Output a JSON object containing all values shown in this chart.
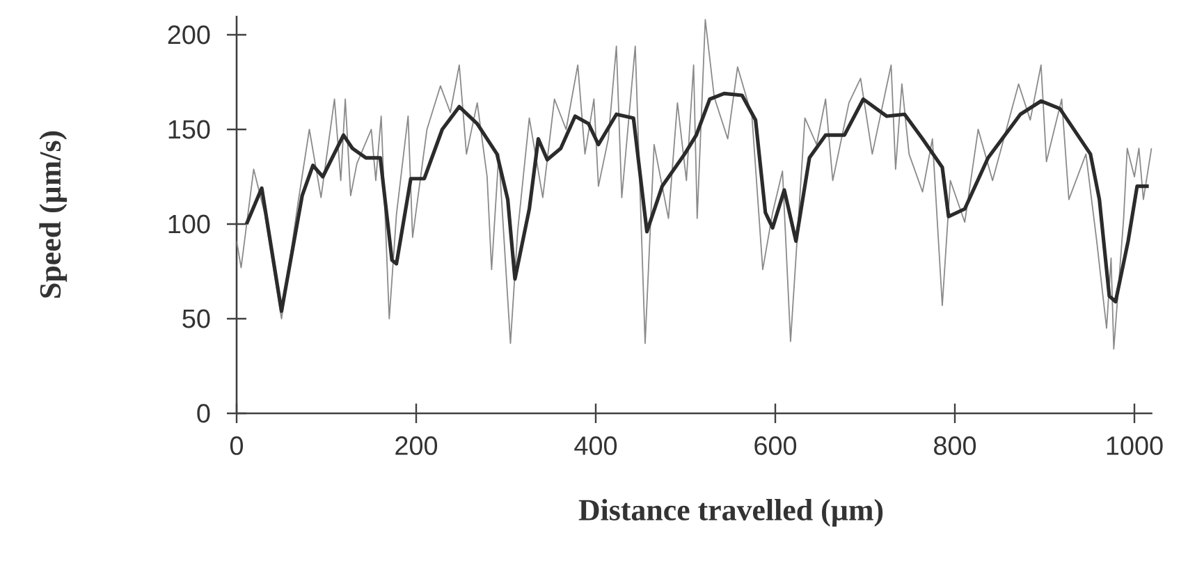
{
  "chart_data": {
    "type": "line",
    "xlabel": "Distance travelled (µm)",
    "ylabel": "Speed (µm/s)",
    "xlim": [
      0,
      1020
    ],
    "ylim": [
      0,
      210
    ],
    "xticks": [
      0,
      200,
      400,
      600,
      800,
      1000
    ],
    "yticks": [
      0,
      50,
      100,
      150,
      200
    ],
    "grid": false,
    "series": [
      {
        "color": "#8a8a8a",
        "x": [
          0,
          5,
          19,
          31,
          50,
          68,
          81,
          94,
          109,
          116,
          121,
          127,
          134,
          150,
          155,
          161,
          170,
          178,
          191,
          196,
          212,
          227,
          238,
          248,
          256,
          268,
          279,
          284,
          292,
          305,
          313,
          326,
          341,
          354,
          367,
          380,
          388,
          398,
          403,
          414,
          423,
          429,
          444,
          455,
          465,
          481,
          491,
          501,
          509,
          513,
          522,
          532,
          547,
          558,
          574,
          586,
          597,
          608,
          617,
          633,
          646,
          656,
          664,
          682,
          695,
          708,
          729,
          734,
          741,
          749,
          764,
          775,
          786,
          795,
          811,
          826,
          842,
          871,
          884,
          896,
          902,
          919,
          927,
          946,
          958,
          969,
          974,
          977,
          988,
          992,
          1000,
          1005,
          1010,
          1019
        ],
        "values": [
          91,
          77,
          129,
          106,
          50,
          110,
          150,
          114,
          166,
          123,
          166,
          115,
          132,
          150,
          123,
          157,
          50,
          105,
          157,
          93,
          150,
          173,
          159,
          184,
          137,
          164,
          125,
          76,
          137,
          37,
          96,
          156,
          114,
          166,
          150,
          184,
          137,
          166,
          120,
          145,
          194,
          114,
          194,
          37,
          142,
          103,
          164,
          123,
          184,
          103,
          208,
          167,
          145,
          183,
          157,
          76,
          106,
          128,
          38,
          156,
          142,
          166,
          123,
          164,
          177,
          137,
          184,
          129,
          174,
          137,
          117,
          145,
          57,
          123,
          101,
          150,
          123,
          174,
          155,
          184,
          133,
          166,
          113,
          137,
          91,
          45,
          82,
          34,
          103,
          140,
          125,
          140,
          113,
          140
        ]
      },
      {
        "color": "#2b2b2b",
        "x": [
          11,
          28,
          50,
          73,
          85,
          96,
          119,
          129,
          144,
          160,
          173,
          178,
          194,
          209,
          229,
          248,
          268,
          290,
          302,
          310,
          326,
          336,
          346,
          361,
          377,
          392,
          403,
          423,
          442,
          457,
          474,
          499,
          512,
          527,
          543,
          563,
          578,
          589,
          597,
          610,
          623,
          638,
          656,
          677,
          698,
          724,
          744,
          764,
          786,
          793,
          811,
          837,
          873,
          896,
          917,
          951,
          961,
          972,
          979,
          993,
          1003,
          1016
        ],
        "values": [
          100,
          119,
          54,
          115,
          131,
          125,
          147,
          140,
          135,
          135,
          81,
          79,
          124,
          124,
          150,
          162,
          153,
          137,
          113,
          71,
          108,
          145,
          134,
          140,
          157,
          153,
          142,
          158,
          156,
          96,
          120,
          137,
          147,
          166,
          169,
          168,
          155,
          106,
          98,
          118,
          91,
          135,
          147,
          147,
          166,
          157,
          158,
          145,
          130,
          104,
          108,
          135,
          158,
          165,
          161,
          137,
          113,
          62,
          59,
          91,
          120,
          120
        ]
      }
    ]
  }
}
